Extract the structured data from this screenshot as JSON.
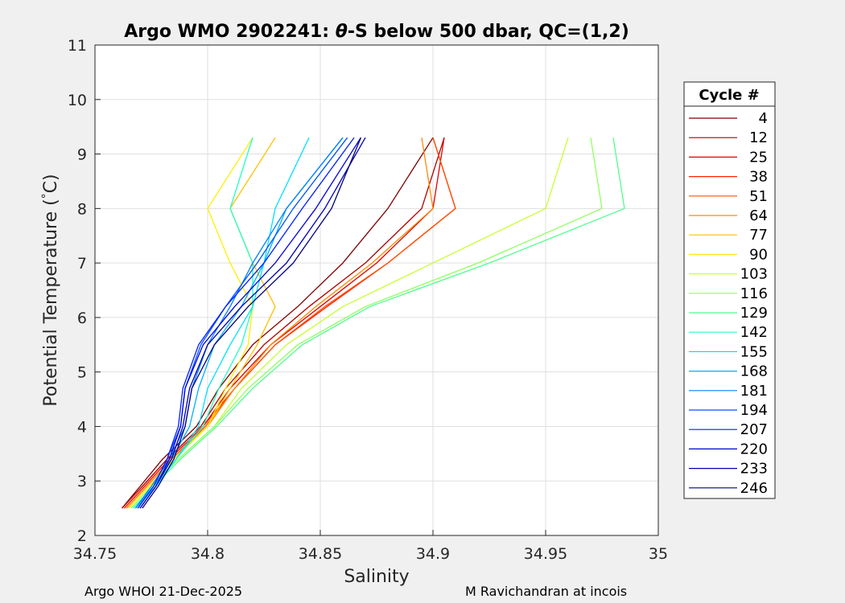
{
  "chart_data": {
    "type": "line",
    "title": "Argo WMO 2902241: θ-S below 500 dbar,  QC=(1,2)",
    "title_parts": {
      "prefix": "Argo WMO 2902241: ",
      "symbol": "θ",
      "suffix": "-S below 500 dbar,  QC=(1,2)"
    },
    "xlabel": "Salinity",
    "ylabel_parts": {
      "main": "Potential Temperature (",
      "degree": "°",
      "unit": "C)"
    },
    "xlim": [
      34.75,
      35
    ],
    "ylim": [
      2,
      11
    ],
    "xticks": [
      "34.75",
      "34.8",
      "34.85",
      "34.9",
      "34.95",
      "35"
    ],
    "yticks": [
      "2",
      "3",
      "4",
      "5",
      "6",
      "7",
      "8",
      "9",
      "10",
      "11"
    ],
    "grid": true,
    "colormap": "jet",
    "legend": {
      "title": "Cycle #",
      "placement": "right",
      "entries": [
        {
          "label": "4",
          "color": "#800000"
        },
        {
          "label": "12",
          "color": "#b00000"
        },
        {
          "label": "25",
          "color": "#e00000"
        },
        {
          "label": "38",
          "color": "#ff2000"
        },
        {
          "label": "51",
          "color": "#ff5000"
        },
        {
          "label": "64",
          "color": "#ff8a00"
        },
        {
          "label": "77",
          "color": "#ffc000"
        },
        {
          "label": "90",
          "color": "#ffee00"
        },
        {
          "label": "103",
          "color": "#c8ff30"
        },
        {
          "label": "116",
          "color": "#90ff60"
        },
        {
          "label": "129",
          "color": "#50ff90"
        },
        {
          "label": "142",
          "color": "#20ffc0"
        },
        {
          "label": "155",
          "color": "#00e0ff"
        },
        {
          "label": "168",
          "color": "#00b0ff"
        },
        {
          "label": "181",
          "color": "#0080ff"
        },
        {
          "label": "194",
          "color": "#0050ff"
        },
        {
          "label": "207",
          "color": "#0020ff"
        },
        {
          "label": "220",
          "color": "#0000e0"
        },
        {
          "label": "233",
          "color": "#0000b0"
        },
        {
          "label": "246",
          "color": "#000080"
        }
      ]
    },
    "series": [
      {
        "name": "4",
        "color": "#800000",
        "x": [
          34.762,
          34.77,
          34.78,
          34.795,
          34.805,
          34.82,
          34.84,
          34.86,
          34.88,
          34.9
        ],
        "y": [
          2.5,
          2.9,
          3.4,
          4.0,
          4.7,
          5.5,
          6.2,
          7.0,
          8.0,
          9.3
        ]
      },
      {
        "name": "12",
        "color": "#b00000",
        "x": [
          34.762,
          34.771,
          34.782,
          34.797,
          34.808,
          34.825,
          34.845,
          34.87,
          34.895,
          34.905
        ],
        "y": [
          2.5,
          2.9,
          3.4,
          4.0,
          4.7,
          5.5,
          6.2,
          7.0,
          8.0,
          9.3
        ]
      },
      {
        "name": "25",
        "color": "#e00000",
        "x": [
          34.763,
          34.772,
          34.783,
          34.798,
          34.81,
          34.828,
          34.85,
          34.875,
          34.9,
          34.905
        ],
        "y": [
          2.5,
          2.9,
          3.4,
          4.0,
          4.7,
          5.5,
          6.2,
          7.0,
          8.0,
          9.3
        ]
      },
      {
        "name": "38",
        "color": "#ff2000",
        "x": [
          34.763,
          34.772,
          34.783,
          34.798,
          34.812,
          34.83,
          34.853,
          34.88,
          34.91,
          34.9
        ],
        "y": [
          2.5,
          2.9,
          3.4,
          4.0,
          4.7,
          5.5,
          6.2,
          7.0,
          8.0,
          9.3
        ]
      },
      {
        "name": "51",
        "color": "#ff5000",
        "x": [
          34.764,
          34.773,
          34.784,
          34.799,
          34.812,
          34.83,
          34.852,
          34.88,
          34.91,
          34.9
        ],
        "y": [
          2.5,
          2.9,
          3.4,
          4.0,
          4.7,
          5.5,
          6.2,
          7.0,
          8.0,
          9.3
        ]
      },
      {
        "name": "64",
        "color": "#ff8a00",
        "x": [
          34.764,
          34.773,
          34.784,
          34.8,
          34.812,
          34.828,
          34.848,
          34.873,
          34.9,
          34.895
        ],
        "y": [
          2.5,
          2.9,
          3.4,
          4.0,
          4.7,
          5.5,
          6.2,
          7.0,
          8.0,
          9.3
        ]
      },
      {
        "name": "77",
        "color": "#ffc000",
        "x": [
          34.765,
          34.774,
          34.785,
          34.8,
          34.81,
          34.822,
          34.83,
          34.82,
          34.81,
          34.83
        ],
        "y": [
          2.5,
          2.9,
          3.4,
          4.0,
          4.7,
          5.5,
          6.2,
          7.0,
          8.0,
          9.3
        ]
      },
      {
        "name": "90",
        "color": "#ffee00",
        "x": [
          34.765,
          34.774,
          34.785,
          34.8,
          34.808,
          34.818,
          34.82,
          34.81,
          34.8,
          34.82
        ],
        "y": [
          2.5,
          2.9,
          3.4,
          4.0,
          4.7,
          5.5,
          6.2,
          7.0,
          8.0,
          9.3
        ]
      },
      {
        "name": "103",
        "color": "#c8ff30",
        "x": [
          34.766,
          34.775,
          34.787,
          34.803,
          34.815,
          34.835,
          34.86,
          34.9,
          34.95,
          34.96
        ],
        "y": [
          2.5,
          2.9,
          3.4,
          4.0,
          4.7,
          5.5,
          6.2,
          7.0,
          8.0,
          9.3
        ]
      },
      {
        "name": "116",
        "color": "#90ff60",
        "x": [
          34.766,
          34.775,
          34.787,
          34.803,
          34.818,
          34.84,
          34.87,
          34.92,
          34.975,
          34.97
        ],
        "y": [
          2.5,
          2.9,
          3.4,
          4.0,
          4.7,
          5.5,
          6.2,
          7.0,
          8.0,
          9.3
        ]
      },
      {
        "name": "129",
        "color": "#50ff90",
        "x": [
          34.767,
          34.776,
          34.788,
          34.804,
          34.82,
          34.842,
          34.872,
          34.925,
          34.985,
          34.98
        ],
        "y": [
          2.5,
          2.9,
          3.4,
          4.0,
          4.7,
          5.5,
          6.2,
          7.0,
          8.0,
          9.3
        ]
      },
      {
        "name": "142",
        "color": "#20ffc0",
        "x": [
          34.767,
          34.776,
          34.786,
          34.798,
          34.805,
          34.815,
          34.82,
          34.82,
          34.81,
          34.82
        ],
        "y": [
          2.5,
          2.9,
          3.4,
          4.0,
          4.7,
          5.5,
          6.2,
          7.0,
          8.0,
          9.3
        ]
      },
      {
        "name": "155",
        "color": "#00e0ff",
        "x": [
          34.768,
          34.777,
          34.786,
          34.796,
          34.8,
          34.81,
          34.82,
          34.825,
          34.83,
          34.845
        ],
        "y": [
          2.5,
          2.9,
          3.4,
          4.0,
          4.7,
          5.5,
          6.2,
          7.0,
          8.0,
          9.3
        ]
      },
      {
        "name": "168",
        "color": "#00b0ff",
        "x": [
          34.768,
          34.776,
          34.784,
          34.792,
          34.796,
          34.803,
          34.815,
          34.825,
          34.835,
          34.86
        ],
        "y": [
          2.5,
          2.9,
          3.4,
          4.0,
          4.7,
          5.5,
          6.2,
          7.0,
          8.0,
          9.3
        ]
      },
      {
        "name": "181",
        "color": "#0080ff",
        "x": [
          34.768,
          34.775,
          34.783,
          34.79,
          34.793,
          34.8,
          34.81,
          34.82,
          34.835,
          34.86
        ],
        "y": [
          2.5,
          2.9,
          3.4,
          4.0,
          4.7,
          5.5,
          6.2,
          7.0,
          8.0,
          9.3
        ]
      },
      {
        "name": "194",
        "color": "#0050ff",
        "x": [
          34.769,
          34.776,
          34.782,
          34.788,
          34.79,
          34.797,
          34.808,
          34.822,
          34.838,
          34.862
        ],
        "y": [
          2.5,
          2.9,
          3.4,
          4.0,
          4.7,
          5.5,
          6.2,
          7.0,
          8.0,
          9.3
        ]
      },
      {
        "name": "207",
        "color": "#0020ff",
        "x": [
          34.769,
          34.776,
          34.782,
          34.787,
          34.789,
          34.796,
          34.808,
          34.825,
          34.842,
          34.865
        ],
        "y": [
          2.5,
          2.9,
          3.4,
          4.0,
          4.7,
          5.5,
          6.2,
          7.0,
          8.0,
          9.3
        ]
      },
      {
        "name": "220",
        "color": "#0000e0",
        "x": [
          34.77,
          34.777,
          34.783,
          34.788,
          34.79,
          34.798,
          34.812,
          34.83,
          34.848,
          34.868
        ],
        "y": [
          2.5,
          2.9,
          3.4,
          4.0,
          4.7,
          5.5,
          6.2,
          7.0,
          8.0,
          9.3
        ]
      },
      {
        "name": "233",
        "color": "#0000b0",
        "x": [
          34.77,
          34.777,
          34.784,
          34.789,
          34.792,
          34.8,
          34.815,
          34.835,
          34.852,
          34.87
        ],
        "y": [
          2.5,
          2.9,
          3.4,
          4.0,
          4.7,
          5.5,
          6.2,
          7.0,
          8.0,
          9.3
        ]
      },
      {
        "name": "246",
        "color": "#000080",
        "x": [
          34.771,
          34.778,
          34.785,
          34.79,
          34.793,
          34.803,
          34.818,
          34.838,
          34.855,
          34.868
        ],
        "y": [
          2.5,
          2.9,
          3.4,
          4.0,
          4.7,
          5.5,
          6.2,
          7.0,
          8.0,
          9.3
        ]
      }
    ]
  },
  "footer": {
    "left": "Argo WHOI 21-Dec-2025",
    "right": "M Ravichandran at incois"
  }
}
